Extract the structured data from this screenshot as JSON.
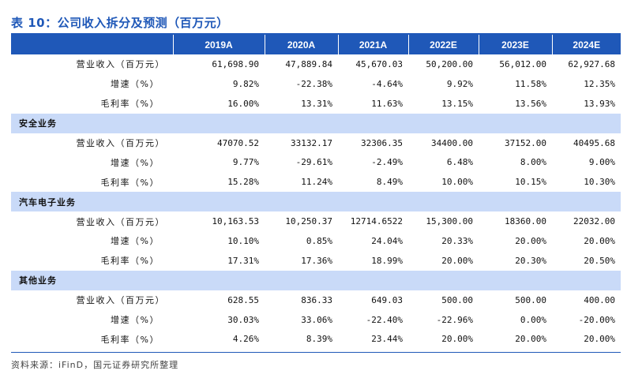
{
  "title": "表 10：公司收入拆分及预测（百万元）",
  "columns": [
    "",
    "2019A",
    "2020A",
    "2021A",
    "2022E",
    "2023E",
    "2024E"
  ],
  "groups": [
    {
      "name": "",
      "rows": [
        {
          "label": "营业收入（百万元）",
          "values": [
            "61,698.90",
            "47,889.84",
            "45,670.03",
            "50,200.00",
            "56,012.00",
            "62,927.68"
          ]
        },
        {
          "label": "增速（%）",
          "values": [
            "9.82%",
            "-22.38%",
            "-4.64%",
            "9.92%",
            "11.58%",
            "12.35%"
          ]
        },
        {
          "label": "毛利率（%）",
          "values": [
            "16.00%",
            "13.31%",
            "11.63%",
            "13.15%",
            "13.56%",
            "13.93%"
          ]
        }
      ]
    },
    {
      "name": "安全业务",
      "rows": [
        {
          "label": "营业收入（百万元）",
          "values": [
            "47070.52",
            "33132.17",
            "32306.35",
            "34400.00",
            "37152.00",
            "40495.68"
          ]
        },
        {
          "label": "增速（%）",
          "values": [
            "9.77%",
            "-29.61%",
            "-2.49%",
            "6.48%",
            "8.00%",
            "9.00%"
          ]
        },
        {
          "label": "毛利率（%）",
          "values": [
            "15.28%",
            "11.24%",
            "8.49%",
            "10.00%",
            "10.15%",
            "10.30%"
          ]
        }
      ]
    },
    {
      "name": "汽车电子业务",
      "rows": [
        {
          "label": "营业收入（百万元）",
          "values": [
            "10,163.53",
            "10,250.37",
            "12714.6522",
            "15,300.00",
            "18360.00",
            "22032.00"
          ]
        },
        {
          "label": "增速（%）",
          "values": [
            "10.10%",
            "0.85%",
            "24.04%",
            "20.33%",
            "20.00%",
            "20.00%"
          ]
        },
        {
          "label": "毛利率（%）",
          "values": [
            "17.31%",
            "17.36%",
            "18.99%",
            "20.00%",
            "20.30%",
            "20.50%"
          ]
        }
      ]
    },
    {
      "name": "其他业务",
      "rows": [
        {
          "label": "营业收入（百万元）",
          "values": [
            "628.55",
            "836.33",
            "649.03",
            "500.00",
            "500.00",
            "400.00"
          ]
        },
        {
          "label": "增速（%）",
          "values": [
            "30.03%",
            "33.06%",
            "-22.40%",
            "-22.96%",
            "0.00%",
            "-20.00%"
          ]
        },
        {
          "label": "毛利率（%）",
          "values": [
            "4.26%",
            "8.39%",
            "23.44%",
            "20.00%",
            "20.00%",
            "20.00%"
          ]
        }
      ]
    }
  ],
  "source": "资料来源：iFinD，国元证券研究所整理",
  "colors": {
    "accent": "#1f58b8",
    "section_band": "#c9daf8"
  }
}
